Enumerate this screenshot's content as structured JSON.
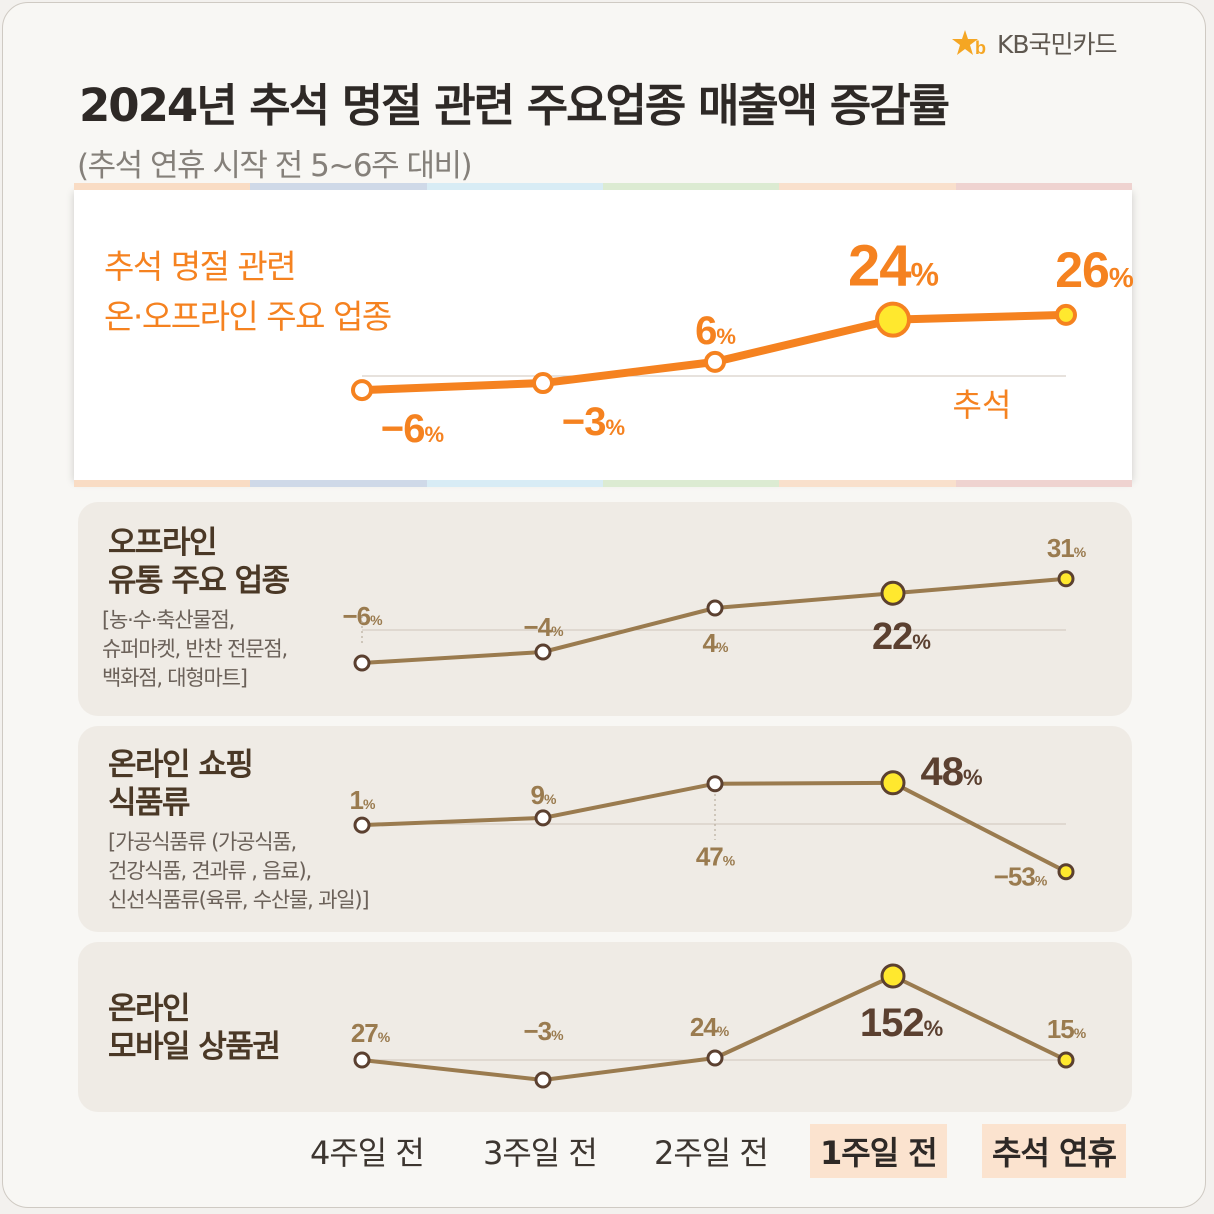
{
  "header": {
    "brand": "KB국민카드",
    "title": "2024년 추석 명절 관련 주요업종 매출액 증감률",
    "subtitle": "(추석 연휴 시작 전 5~6주 대비)"
  },
  "colors": {
    "orange": "#f58220",
    "brown": "#9a7b4f",
    "dark_brown": "#5b4030",
    "yellow": "#ffe82e"
  },
  "chart_data": [
    {
      "type": "line",
      "title": "추석 명절 관련 온·오프라인 주요 업종",
      "title_lines": [
        "추석 명절 관련",
        "온·오프라인 주요 업종"
      ],
      "categories": [
        "4주일 전",
        "3주일 전",
        "2주일 전",
        "1주일 전",
        "추석 연휴"
      ],
      "values": [
        -6,
        -3,
        6,
        24,
        26
      ],
      "labels": [
        "-6",
        "-3",
        "6",
        "24",
        "26"
      ],
      "unit": "%",
      "baseline_note": "추석"
    },
    {
      "type": "line",
      "title": "오프라인 유통 주요 업종",
      "title_lines": [
        "오프라인",
        "유통 주요 업종"
      ],
      "desc_lines": [
        "[농·수·축산물점,",
        "슈퍼마켓, 반찬 전문점,",
        "백화점, 대형마트]"
      ],
      "categories": [
        "4주일 전",
        "3주일 전",
        "2주일 전",
        "1주일 전",
        "추석 연휴"
      ],
      "values": [
        -6,
        -4,
        4,
        22,
        31
      ],
      "labels": [
        "-6",
        "-4",
        "4",
        "22",
        "31"
      ],
      "unit": "%"
    },
    {
      "type": "line",
      "title": "온라인 쇼핑 식품류",
      "title_lines": [
        "온라인 쇼핑",
        "식품류"
      ],
      "desc_lines": [
        "[가공식품류 (가공식품,",
        "건강식품, 견과류 , 음료),",
        "신선식품류(육류, 수산물, 과일)]"
      ],
      "categories": [
        "4주일 전",
        "3주일 전",
        "2주일 전",
        "1주일 전",
        "추석 연휴"
      ],
      "values": [
        1,
        9,
        47,
        48,
        -53
      ],
      "labels": [
        "1",
        "9",
        "47",
        "48",
        "-53"
      ],
      "unit": "%"
    },
    {
      "type": "line",
      "title": "온라인 모바일 상품권",
      "title_lines": [
        "온라인",
        "모바일 상품권"
      ],
      "categories": [
        "4주일 전",
        "3주일 전",
        "2주일 전",
        "1주일 전",
        "추석 연휴"
      ],
      "values": [
        27,
        -3,
        24,
        152,
        15
      ],
      "labels": [
        "27",
        "-3",
        "24",
        "152",
        "15"
      ],
      "unit": "%"
    }
  ],
  "x_axis": {
    "labels": [
      "4주일 전",
      "3주일 전",
      "2주일 전",
      "1주일 전",
      "추석 연휴"
    ],
    "highlighted": [
      "1주일 전",
      "추석 연휴"
    ]
  }
}
